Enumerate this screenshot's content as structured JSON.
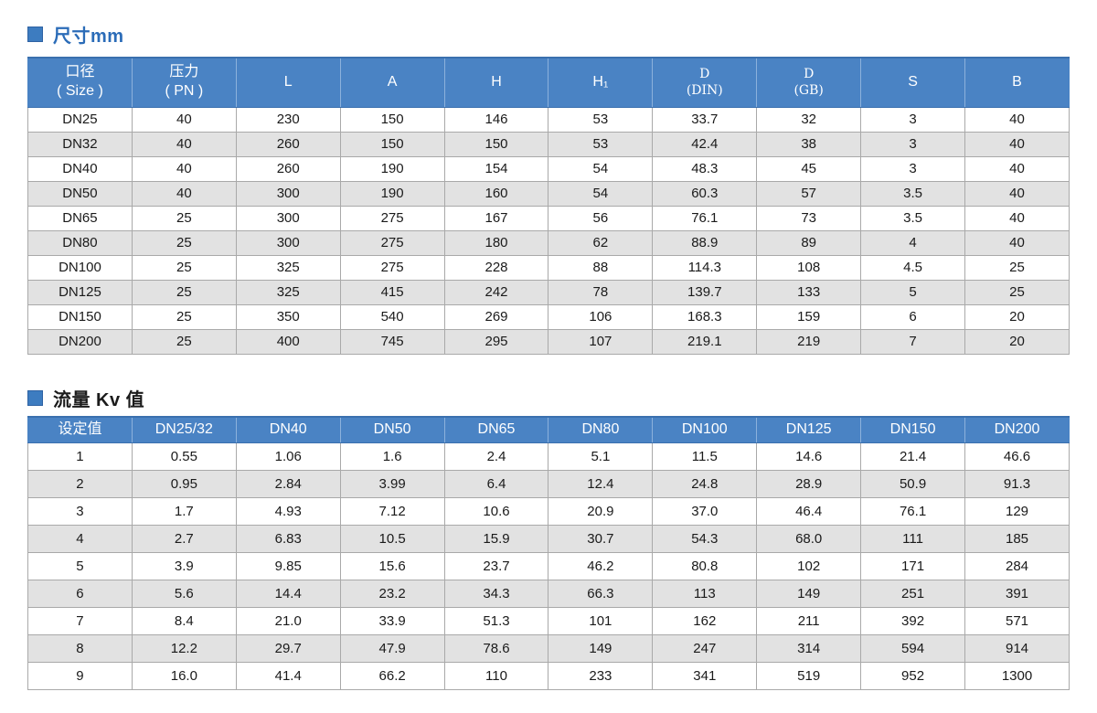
{
  "colors": {
    "header_blue": "#4a83c4",
    "header_edge_blue": "#3a70ae",
    "title_blue": "#2b6cb8",
    "bullet_blue": "#3d7cc0",
    "row_alt_gray": "#e2e2e2",
    "cell_border_gray": "#a9a9a9"
  },
  "sections": [
    {
      "id": "dimensions",
      "title": "尺寸mm",
      "table": {
        "headers": [
          "口径\n( Size )",
          "压力\n( PN )",
          "L",
          "A",
          "H",
          "H₁",
          "D\n(DIN)",
          "D\n(GB)",
          "S",
          "B"
        ],
        "rows": [
          [
            "DN25",
            "40",
            "230",
            "150",
            "146",
            "53",
            "33.7",
            "32",
            "3",
            "40"
          ],
          [
            "DN32",
            "40",
            "260",
            "150",
            "150",
            "53",
            "42.4",
            "38",
            "3",
            "40"
          ],
          [
            "DN40",
            "40",
            "260",
            "190",
            "154",
            "54",
            "48.3",
            "45",
            "3",
            "40"
          ],
          [
            "DN50",
            "40",
            "300",
            "190",
            "160",
            "54",
            "60.3",
            "57",
            "3.5",
            "40"
          ],
          [
            "DN65",
            "25",
            "300",
            "275",
            "167",
            "56",
            "76.1",
            "73",
            "3.5",
            "40"
          ],
          [
            "DN80",
            "25",
            "300",
            "275",
            "180",
            "62",
            "88.9",
            "89",
            "4",
            "40"
          ],
          [
            "DN100",
            "25",
            "325",
            "275",
            "228",
            "88",
            "114.3",
            "108",
            "4.5",
            "25"
          ],
          [
            "DN125",
            "25",
            "325",
            "415",
            "242",
            "78",
            "139.7",
            "133",
            "5",
            "25"
          ],
          [
            "DN150",
            "25",
            "350",
            "540",
            "269",
            "106",
            "168.3",
            "159",
            "6",
            "20"
          ],
          [
            "DN200",
            "25",
            "400",
            "745",
            "295",
            "107",
            "219.1",
            "219",
            "7",
            "20"
          ]
        ]
      }
    },
    {
      "id": "flow-kv",
      "title": "流量 Kv 值",
      "table": {
        "headers": [
          "设定值",
          "DN25/32",
          "DN40",
          "DN50",
          "DN65",
          "DN80",
          "DN100",
          "DN125",
          "DN150",
          "DN200"
        ],
        "rows": [
          [
            "1",
            "0.55",
            "1.06",
            "1.6",
            "2.4",
            "5.1",
            "11.5",
            "14.6",
            "21.4",
            "46.6"
          ],
          [
            "2",
            "0.95",
            "2.84",
            "3.99",
            "6.4",
            "12.4",
            "24.8",
            "28.9",
            "50.9",
            "91.3"
          ],
          [
            "3",
            "1.7",
            "4.93",
            "7.12",
            "10.6",
            "20.9",
            "37.0",
            "46.4",
            "76.1",
            "129"
          ],
          [
            "4",
            "2.7",
            "6.83",
            "10.5",
            "15.9",
            "30.7",
            "54.3",
            "68.0",
            "111",
            "185"
          ],
          [
            "5",
            "3.9",
            "9.85",
            "15.6",
            "23.7",
            "46.2",
            "80.8",
            "102",
            "171",
            "284"
          ],
          [
            "6",
            "5.6",
            "14.4",
            "23.2",
            "34.3",
            "66.3",
            "113",
            "149",
            "251",
            "391"
          ],
          [
            "7",
            "8.4",
            "21.0",
            "33.9",
            "51.3",
            "101",
            "162",
            "211",
            "392",
            "571"
          ],
          [
            "8",
            "12.2",
            "29.7",
            "47.9",
            "78.6",
            "149",
            "247",
            "314",
            "594",
            "914"
          ],
          [
            "9",
            "16.0",
            "41.4",
            "66.2",
            "110",
            "233",
            "341",
            "519",
            "952",
            "1300"
          ]
        ]
      }
    }
  ]
}
